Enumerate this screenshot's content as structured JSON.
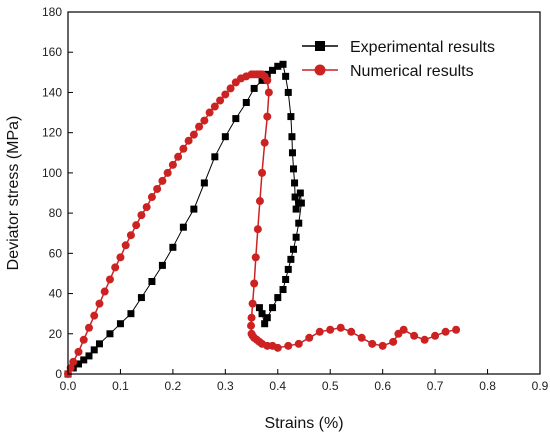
{
  "chart_data": {
    "type": "scatter",
    "xlabel": "Strains (%)",
    "ylabel": "Deviator stress (MPa)",
    "xlim": [
      0,
      0.9
    ],
    "ylim": [
      0,
      180
    ],
    "xticks": [
      "0.0",
      "0.1",
      "0.2",
      "0.3",
      "0.4",
      "0.5",
      "0.6",
      "0.7",
      "0.8",
      "0.9"
    ],
    "yticks": [
      "0",
      "20",
      "40",
      "60",
      "80",
      "100",
      "120",
      "140",
      "160",
      "180"
    ],
    "legend_position": "top-right",
    "grid": false,
    "series": [
      {
        "name": "Experimental results",
        "color": "#000000",
        "marker": "square",
        "x": [
          0.0,
          0.01,
          0.02,
          0.03,
          0.04,
          0.05,
          0.06,
          0.08,
          0.1,
          0.12,
          0.14,
          0.16,
          0.18,
          0.2,
          0.22,
          0.24,
          0.26,
          0.28,
          0.3,
          0.32,
          0.34,
          0.355,
          0.37,
          0.38,
          0.39,
          0.4,
          0.41,
          0.415,
          0.42,
          0.425,
          0.427,
          0.428,
          0.43,
          0.432,
          0.433,
          0.435,
          0.44,
          0.443,
          0.445,
          0.44,
          0.435,
          0.43,
          0.425,
          0.42,
          0.415,
          0.41,
          0.4,
          0.39,
          0.38,
          0.375,
          0.37,
          0.365
        ],
        "y": [
          0,
          3,
          5,
          7,
          9,
          12,
          15,
          20,
          25,
          30,
          38,
          46,
          54,
          63,
          73,
          82,
          95,
          108,
          118,
          127,
          135,
          142,
          146,
          149,
          151,
          153,
          154,
          148,
          140,
          128,
          118,
          110,
          102,
          95,
          88,
          82,
          85,
          90,
          85,
          75,
          68,
          62,
          57,
          52,
          47,
          42,
          38,
          33,
          28,
          25,
          30,
          33
        ]
      },
      {
        "name": "Numerical results",
        "color": "#cc2222",
        "marker": "circle",
        "x": [
          0.0,
          0.005,
          0.01,
          0.02,
          0.03,
          0.04,
          0.05,
          0.06,
          0.07,
          0.08,
          0.09,
          0.1,
          0.11,
          0.12,
          0.13,
          0.14,
          0.15,
          0.16,
          0.17,
          0.18,
          0.19,
          0.2,
          0.21,
          0.22,
          0.23,
          0.24,
          0.25,
          0.26,
          0.27,
          0.28,
          0.29,
          0.3,
          0.31,
          0.32,
          0.33,
          0.34,
          0.35,
          0.355,
          0.36,
          0.365,
          0.37,
          0.375,
          0.38,
          0.383,
          0.38,
          0.375,
          0.37,
          0.366,
          0.362,
          0.358,
          0.355,
          0.352,
          0.35,
          0.349,
          0.35,
          0.352,
          0.355,
          0.36,
          0.365,
          0.37,
          0.38,
          0.39,
          0.4,
          0.42,
          0.44,
          0.46,
          0.48,
          0.5,
          0.52,
          0.54,
          0.56,
          0.58,
          0.6,
          0.62,
          0.63,
          0.64,
          0.66,
          0.68,
          0.7,
          0.72,
          0.74
        ],
        "y": [
          0,
          3,
          6,
          11,
          17,
          23,
          29,
          35,
          41,
          47,
          53,
          58,
          64,
          69,
          74,
          79,
          83,
          88,
          92,
          96,
          100,
          104,
          108,
          112,
          116,
          119,
          123,
          126,
          130,
          133,
          136,
          139,
          142,
          145,
          147,
          148,
          149,
          149,
          149,
          149,
          149,
          148,
          146,
          140,
          128,
          115,
          100,
          86,
          72,
          58,
          45,
          35,
          28,
          24,
          20,
          19,
          18,
          17,
          16,
          15,
          14,
          14,
          13,
          14,
          15,
          18,
          21,
          22,
          23,
          21,
          18,
          15,
          14,
          16,
          20,
          22,
          19,
          17,
          19,
          21,
          22
        ]
      }
    ]
  }
}
